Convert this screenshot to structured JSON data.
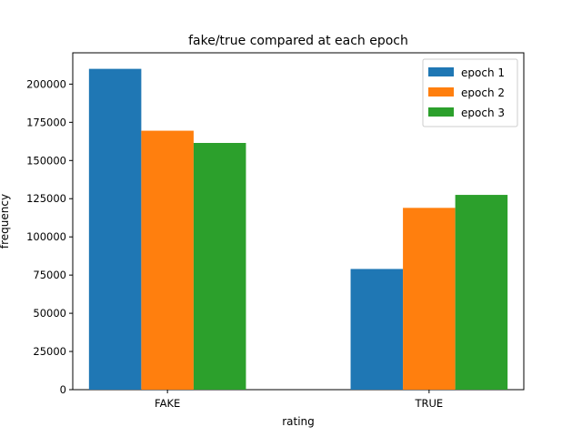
{
  "chart_data": {
    "type": "bar",
    "title": "fake/true compared at each epoch",
    "xlabel": "rating",
    "ylabel": "frequency",
    "categories": [
      "FAKE",
      "TRUE"
    ],
    "series": [
      {
        "name": "epoch 1",
        "color": "#1f77b4",
        "values": [
          210000,
          79000
        ]
      },
      {
        "name": "epoch 2",
        "color": "#ff7f0e",
        "values": [
          169500,
          119000
        ]
      },
      {
        "name": "epoch 3",
        "color": "#2ca02c",
        "values": [
          161500,
          127500
        ]
      }
    ],
    "ylim": [
      0,
      220500
    ],
    "yticks": [
      0,
      25000,
      50000,
      75000,
      100000,
      125000,
      150000,
      175000,
      200000
    ],
    "legend_position": "top-right",
    "grid": false
  }
}
